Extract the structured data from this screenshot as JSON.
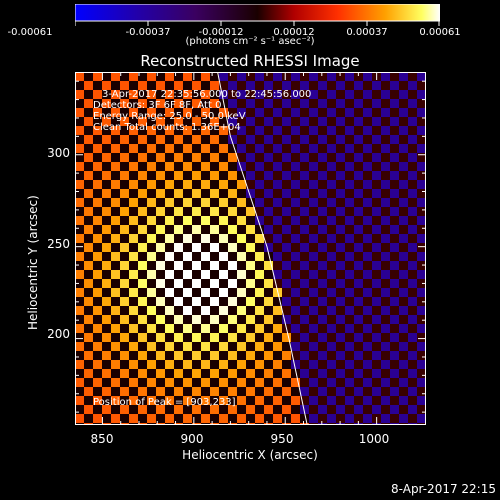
{
  "colorbar": {
    "ticks": [
      "-0.00061",
      "-0.00037",
      "-0.00012",
      "0.00012",
      "0.00037",
      "0.00061"
    ],
    "units": "(photons cm⁻² s⁻¹ asec⁻²)",
    "range": [
      -0.00061,
      0.00061
    ]
  },
  "chart_data": {
    "type": "heatmap",
    "title": "Reconstructed RHESSI Image",
    "xlabel": "Heliocentric X (arcsec)",
    "ylabel": "Heliocentric Y (arcsec)",
    "xlim": [
      835,
      1027
    ],
    "ylim": [
      153,
      345
    ],
    "xticks": [
      "850",
      "900",
      "950",
      "1000"
    ],
    "yticks": [
      "200",
      "250",
      "300"
    ],
    "peak": {
      "x": 903,
      "y": 233
    },
    "annotations": {
      "time_range": "3-Apr-2017 22:35:56.000 to 22:45:56.000",
      "detectors": "Detectors: 3F 6F 8F, Att 0",
      "energy": "Energy Range: 25.0 - 50.0 keV",
      "method": "Clean    Total counts: 1.36E+04",
      "peak_label": "Position of Peak = [903,233]"
    },
    "limb": [
      [
        913,
        345
      ],
      [
        920,
        310
      ],
      [
        930,
        280
      ],
      [
        940,
        250
      ],
      [
        952,
        200
      ],
      [
        962,
        153
      ]
    ],
    "grid": false
  },
  "footer": {
    "date": "8-Apr-2017 22:15"
  }
}
